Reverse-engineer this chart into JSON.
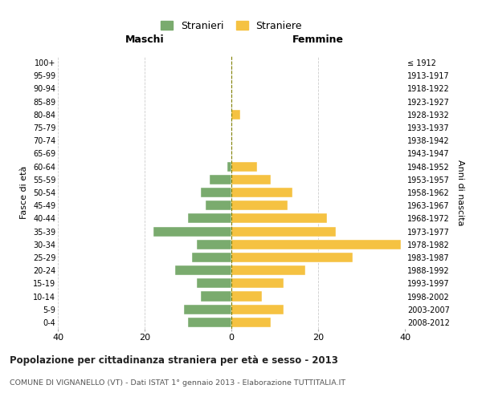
{
  "age_groups": [
    "100+",
    "95-99",
    "90-94",
    "85-89",
    "80-84",
    "75-79",
    "70-74",
    "65-69",
    "60-64",
    "55-59",
    "50-54",
    "45-49",
    "40-44",
    "35-39",
    "30-34",
    "25-29",
    "20-24",
    "15-19",
    "10-14",
    "5-9",
    "0-4"
  ],
  "birth_years": [
    "≤ 1912",
    "1913-1917",
    "1918-1922",
    "1923-1927",
    "1928-1932",
    "1933-1937",
    "1938-1942",
    "1943-1947",
    "1948-1952",
    "1953-1957",
    "1958-1962",
    "1963-1967",
    "1968-1972",
    "1973-1977",
    "1978-1982",
    "1983-1987",
    "1988-1992",
    "1993-1997",
    "1998-2002",
    "2003-2007",
    "2008-2012"
  ],
  "maschi": [
    0,
    0,
    0,
    0,
    0,
    0,
    0,
    0,
    1,
    5,
    7,
    6,
    10,
    18,
    8,
    9,
    13,
    8,
    7,
    11,
    10
  ],
  "femmine": [
    0,
    0,
    0,
    0,
    2,
    0,
    0,
    0,
    6,
    9,
    14,
    13,
    22,
    24,
    39,
    28,
    17,
    12,
    7,
    12,
    9
  ],
  "color_maschi": "#7aab6e",
  "color_femmine": "#f5c242",
  "title": "Popolazione per cittadinanza straniera per età e sesso - 2013",
  "subtitle": "COMUNE DI VIGNANELLO (VT) - Dati ISTAT 1° gennaio 2013 - Elaborazione TUTTITALIA.IT",
  "ylabel_left": "Fasce di età",
  "ylabel_right": "Anni di nascita",
  "label_maschi": "Stranieri",
  "label_femmine": "Straniere",
  "header_maschi": "Maschi",
  "header_femmine": "Femmine",
  "xlim": 40,
  "background_color": "#ffffff",
  "grid_color": "#cccccc"
}
